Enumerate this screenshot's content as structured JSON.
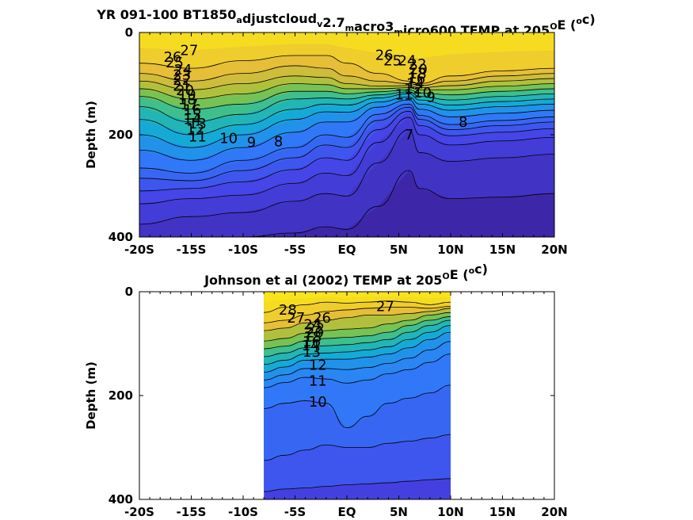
{
  "chart_data": [
    {
      "type": "heatmap",
      "subtype": "filled-contour",
      "title": "YR 091-100 BT1850",
      "title_parts": [
        {
          "text": "YR 091-100 BT1850",
          "sub": "a"
        },
        {
          "text": "djustcloud",
          "sub": "v"
        },
        {
          "text": "2.7",
          "sub": "m"
        },
        {
          "text": "acro3",
          "sub": "m"
        },
        {
          "text": "icro600 TEMP at 205",
          "sup": "O"
        },
        {
          "text": "E (",
          "sup": "o"
        },
        {
          "text": "c)"
        }
      ],
      "xlabel": "",
      "ylabel": "Depth (m)",
      "xlim": [
        -20,
        20
      ],
      "ylim": [
        400,
        0
      ],
      "xticks": [
        -20,
        -15,
        -10,
        -5,
        0,
        5,
        10,
        15,
        20
      ],
      "xticklabels": [
        "-20S",
        "-15S",
        "-10S",
        "-5S",
        "EQ",
        "5N",
        "10N",
        "15N",
        "20N"
      ],
      "yticks": [
        0,
        200,
        400
      ],
      "yticklabels": [
        "0",
        "200",
        "400"
      ],
      "data_extent": [
        -20,
        20
      ],
      "colormap": "parula",
      "color_range": [
        6,
        29
      ],
      "isotherm_depths": {
        "x": [
          -20,
          -15,
          -10,
          -5,
          -2,
          0,
          3,
          6,
          7,
          10,
          15,
          20
        ],
        "levels": [
          27,
          26,
          25,
          24,
          22,
          20,
          18,
          16,
          14,
          12,
          11,
          10,
          9,
          8,
          7
        ],
        "depths": [
          [
            60,
            70,
            55,
            45,
            45,
            60,
            80,
            95,
            100,
            85,
            75,
            70
          ],
          [
            80,
            95,
            80,
            65,
            70,
            85,
            95,
            100,
            104,
            95,
            85,
            80
          ],
          [
            95,
            112,
            100,
            85,
            88,
            100,
            105,
            104,
            108,
            104,
            95,
            90
          ],
          [
            110,
            130,
            120,
            100,
            102,
            110,
            110,
            108,
            112,
            112,
            105,
            100
          ],
          [
            125,
            150,
            140,
            115,
            115,
            120,
            116,
            112,
            118,
            122,
            115,
            110
          ],
          [
            145,
            175,
            160,
            130,
            128,
            130,
            122,
            116,
            125,
            132,
            125,
            120
          ],
          [
            170,
            200,
            180,
            150,
            140,
            142,
            128,
            120,
            132,
            142,
            135,
            130
          ],
          [
            200,
            225,
            200,
            170,
            155,
            156,
            136,
            126,
            140,
            152,
            145,
            140
          ],
          [
            230,
            250,
            225,
            195,
            175,
            175,
            146,
            132,
            150,
            165,
            158,
            152
          ],
          [
            265,
            275,
            250,
            225,
            200,
            205,
            160,
            140,
            162,
            180,
            172,
            165
          ],
          [
            285,
            290,
            270,
            245,
            220,
            225,
            172,
            146,
            170,
            190,
            182,
            175
          ],
          [
            310,
            305,
            292,
            268,
            245,
            250,
            190,
            154,
            182,
            202,
            195,
            188
          ],
          [
            335,
            325,
            318,
            295,
            275,
            280,
            215,
            166,
            200,
            220,
            212,
            205
          ],
          [
            375,
            360,
            352,
            330,
            315,
            320,
            255,
            190,
            235,
            252,
            245,
            238
          ],
          [
            400,
            400,
            400,
            392,
            380,
            385,
            340,
            270,
            305,
            325,
            322,
            315
          ]
        ]
      },
      "contour_labels": [
        {
          "value": "27",
          "x": -15.2,
          "y": 35
        },
        {
          "value": "26",
          "x": -16.8,
          "y": 48
        },
        {
          "value": "25",
          "x": -16.6,
          "y": 59
        },
        {
          "value": "24",
          "x": -15.8,
          "y": 73
        },
        {
          "value": "23",
          "x": -15.9,
          "y": 83
        },
        {
          "value": "22",
          "x": -15.9,
          "y": 93
        },
        {
          "value": "21",
          "x": -15.9,
          "y": 105
        },
        {
          "value": "20",
          "x": -15.6,
          "y": 113
        },
        {
          "value": "19",
          "x": -15.4,
          "y": 122
        },
        {
          "value": "18",
          "x": -15.4,
          "y": 131
        },
        {
          "value": "17",
          "x": -15.2,
          "y": 141
        },
        {
          "value": "16",
          "x": -14.9,
          "y": 151
        },
        {
          "value": "15",
          "x": -14.9,
          "y": 161
        },
        {
          "value": "14",
          "x": -14.9,
          "y": 170
        },
        {
          "value": "13",
          "x": -14.4,
          "y": 178
        },
        {
          "value": "12",
          "x": -14.6,
          "y": 190
        },
        {
          "value": "11",
          "x": -14.4,
          "y": 204
        },
        {
          "value": "10",
          "x": -11.4,
          "y": 207
        },
        {
          "value": "9",
          "x": -9.2,
          "y": 215
        },
        {
          "value": "8",
          "x": -6.6,
          "y": 213
        },
        {
          "value": "7",
          "x": 6.0,
          "y": 200
        },
        {
          "value": "8",
          "x": 11.2,
          "y": 175
        },
        {
          "value": "9",
          "x": 8.1,
          "y": 126
        },
        {
          "value": "10",
          "x": 7.3,
          "y": 118
        },
        {
          "value": "11",
          "x": 5.5,
          "y": 122
        },
        {
          "value": "26",
          "x": 3.6,
          "y": 44
        },
        {
          "value": "25",
          "x": 4.4,
          "y": 55
        },
        {
          "value": "24",
          "x": 5.8,
          "y": 55
        },
        {
          "value": "22",
          "x": 6.8,
          "y": 62
        },
        {
          "value": "20",
          "x": 6.9,
          "y": 72
        },
        {
          "value": "18",
          "x": 6.8,
          "y": 81
        },
        {
          "value": "16",
          "x": 6.7,
          "y": 90
        },
        {
          "value": "14",
          "x": 6.6,
          "y": 100
        },
        {
          "value": "12",
          "x": 6.4,
          "y": 110
        }
      ]
    },
    {
      "type": "heatmap",
      "subtype": "filled-contour",
      "title": "Johnson et al (2002) TEMP at 205",
      "title_parts": [
        {
          "text": "Johnson et al (2002) TEMP at 205",
          "sup": "O"
        },
        {
          "text": "E (",
          "sup": "o"
        },
        {
          "text": "c)"
        }
      ],
      "xlabel": "",
      "ylabel": "Depth (m)",
      "xlim": [
        -20,
        20
      ],
      "ylim": [
        400,
        0
      ],
      "xticks": [
        -20,
        -15,
        -10,
        -5,
        0,
        5,
        10,
        15,
        20
      ],
      "xticklabels": [
        "-20S",
        "-15S",
        "-10S",
        "-5S",
        "EQ",
        "5N",
        "10N",
        "15N",
        "20N"
      ],
      "yticks": [
        0,
        200,
        400
      ],
      "yticklabels": [
        "0",
        "200",
        "400"
      ],
      "data_extent": [
        -8,
        10
      ],
      "colormap": "parula",
      "color_range": [
        6,
        29
      ],
      "isotherm_depths": {
        "x": [
          -8,
          -6,
          -4,
          -2,
          0,
          2,
          4,
          6,
          8,
          10
        ],
        "levels": [
          28,
          27,
          26,
          24,
          22,
          20,
          18,
          16,
          14,
          13,
          12,
          11,
          10
        ],
        "depths": [
          [
            40,
            30,
            25,
            20,
            22,
            20,
            18,
            20,
            25,
            20
          ],
          [
            60,
            55,
            45,
            38,
            35,
            32,
            30,
            30,
            32,
            28
          ],
          [
            75,
            70,
            60,
            55,
            50,
            45,
            45,
            42,
            38,
            32
          ],
          [
            95,
            90,
            80,
            75,
            72,
            70,
            62,
            55,
            45,
            40
          ],
          [
            110,
            105,
            95,
            90,
            88,
            85,
            78,
            65,
            55,
            48
          ],
          [
            125,
            118,
            108,
            104,
            102,
            98,
            92,
            78,
            65,
            55
          ],
          [
            140,
            132,
            120,
            118,
            116,
            112,
            106,
            92,
            78,
            65
          ],
          [
            155,
            145,
            132,
            130,
            130,
            126,
            120,
            108,
            92,
            78
          ],
          [
            170,
            160,
            148,
            148,
            150,
            146,
            138,
            128,
            112,
            96
          ],
          [
            185,
            175,
            165,
            168,
            176,
            170,
            158,
            150,
            136,
            120
          ],
          [
            225,
            215,
            210,
            215,
            262,
            240,
            215,
            205,
            195,
            180
          ],
          [
            325,
            315,
            305,
            295,
            300,
            300,
            292,
            288,
            282,
            275
          ],
          [
            385,
            380,
            378,
            375,
            372,
            370,
            368,
            365,
            362,
            360
          ]
        ]
      },
      "contour_labels": [
        {
          "value": "28",
          "x": -5.7,
          "y": 35
        },
        {
          "value": "27",
          "x": -4.9,
          "y": 50
        },
        {
          "value": "26",
          "x": -2.4,
          "y": 50
        },
        {
          "value": "24",
          "x": -3.3,
          "y": 63
        },
        {
          "value": "22",
          "x": -3.0,
          "y": 71
        },
        {
          "value": "20",
          "x": -3.1,
          "y": 79
        },
        {
          "value": "18",
          "x": -3.3,
          "y": 87
        },
        {
          "value": "16",
          "x": -3.4,
          "y": 96
        },
        {
          "value": "14",
          "x": -3.5,
          "y": 104
        },
        {
          "value": "13",
          "x": -3.4,
          "y": 116
        },
        {
          "value": "12",
          "x": -2.8,
          "y": 141
        },
        {
          "value": "11",
          "x": -2.8,
          "y": 172
        },
        {
          "value": "10",
          "x": -2.8,
          "y": 212
        },
        {
          "value": "27",
          "x": 3.7,
          "y": 28
        }
      ]
    }
  ]
}
